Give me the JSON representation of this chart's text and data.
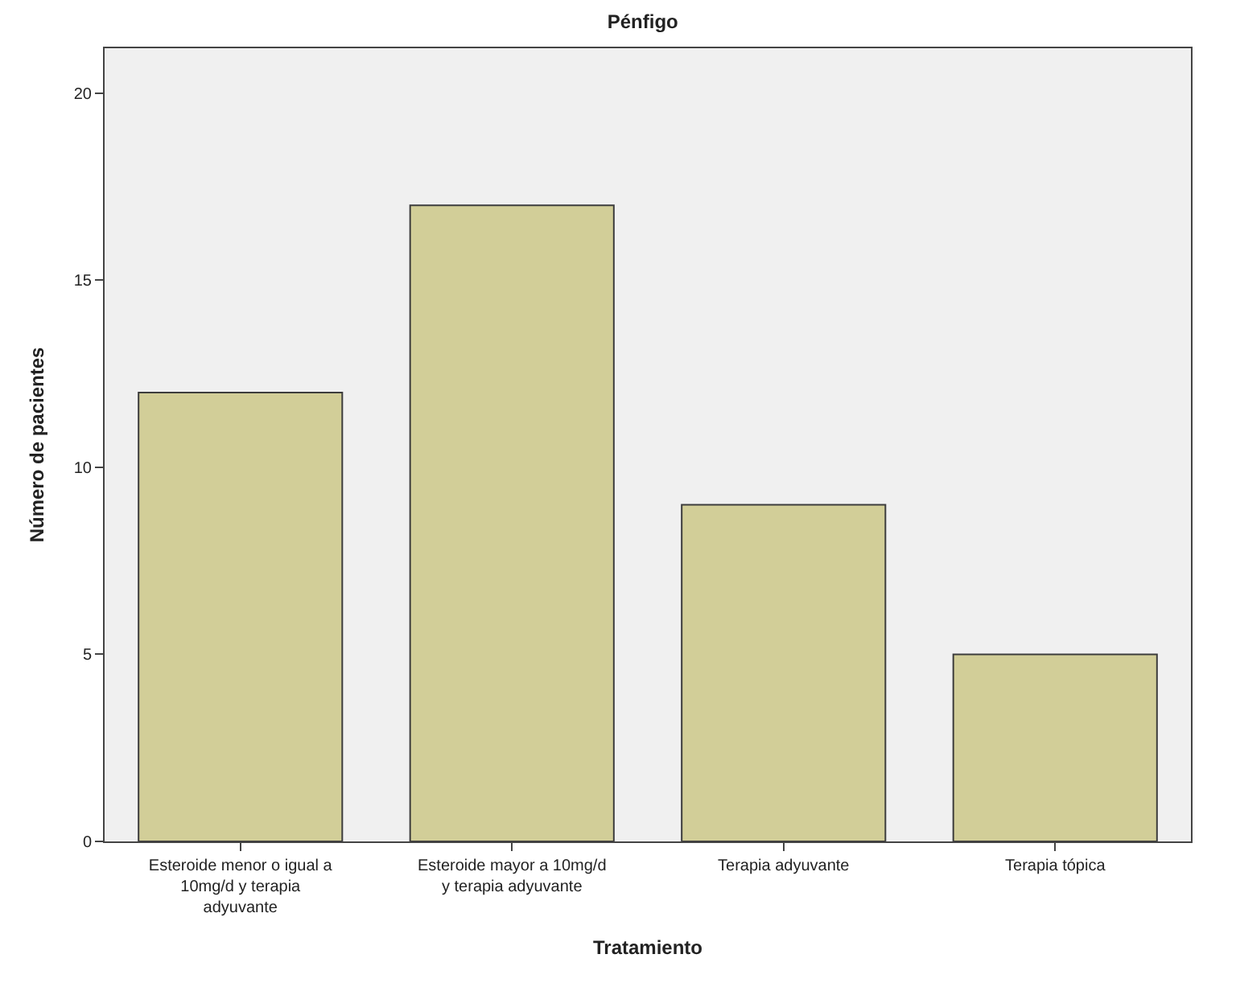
{
  "chart_data": {
    "type": "bar",
    "title": "Pénfigo",
    "xlabel": "Tratamiento",
    "ylabel": "Número de pacientes",
    "categories": [
      "Esteroide menor o igual a 10mg/d y terapia adyuvante",
      "Esteroide mayor a 10mg/d y terapia adyuvante",
      "Terapia adyuvante",
      "Terapia tópica"
    ],
    "values": [
      12,
      17,
      9,
      5
    ],
    "color": "#d2ce98",
    "ylim": [
      0,
      21.2
    ],
    "yticks": [
      0,
      5,
      10,
      15,
      20
    ],
    "grid": false,
    "legend": false
  }
}
